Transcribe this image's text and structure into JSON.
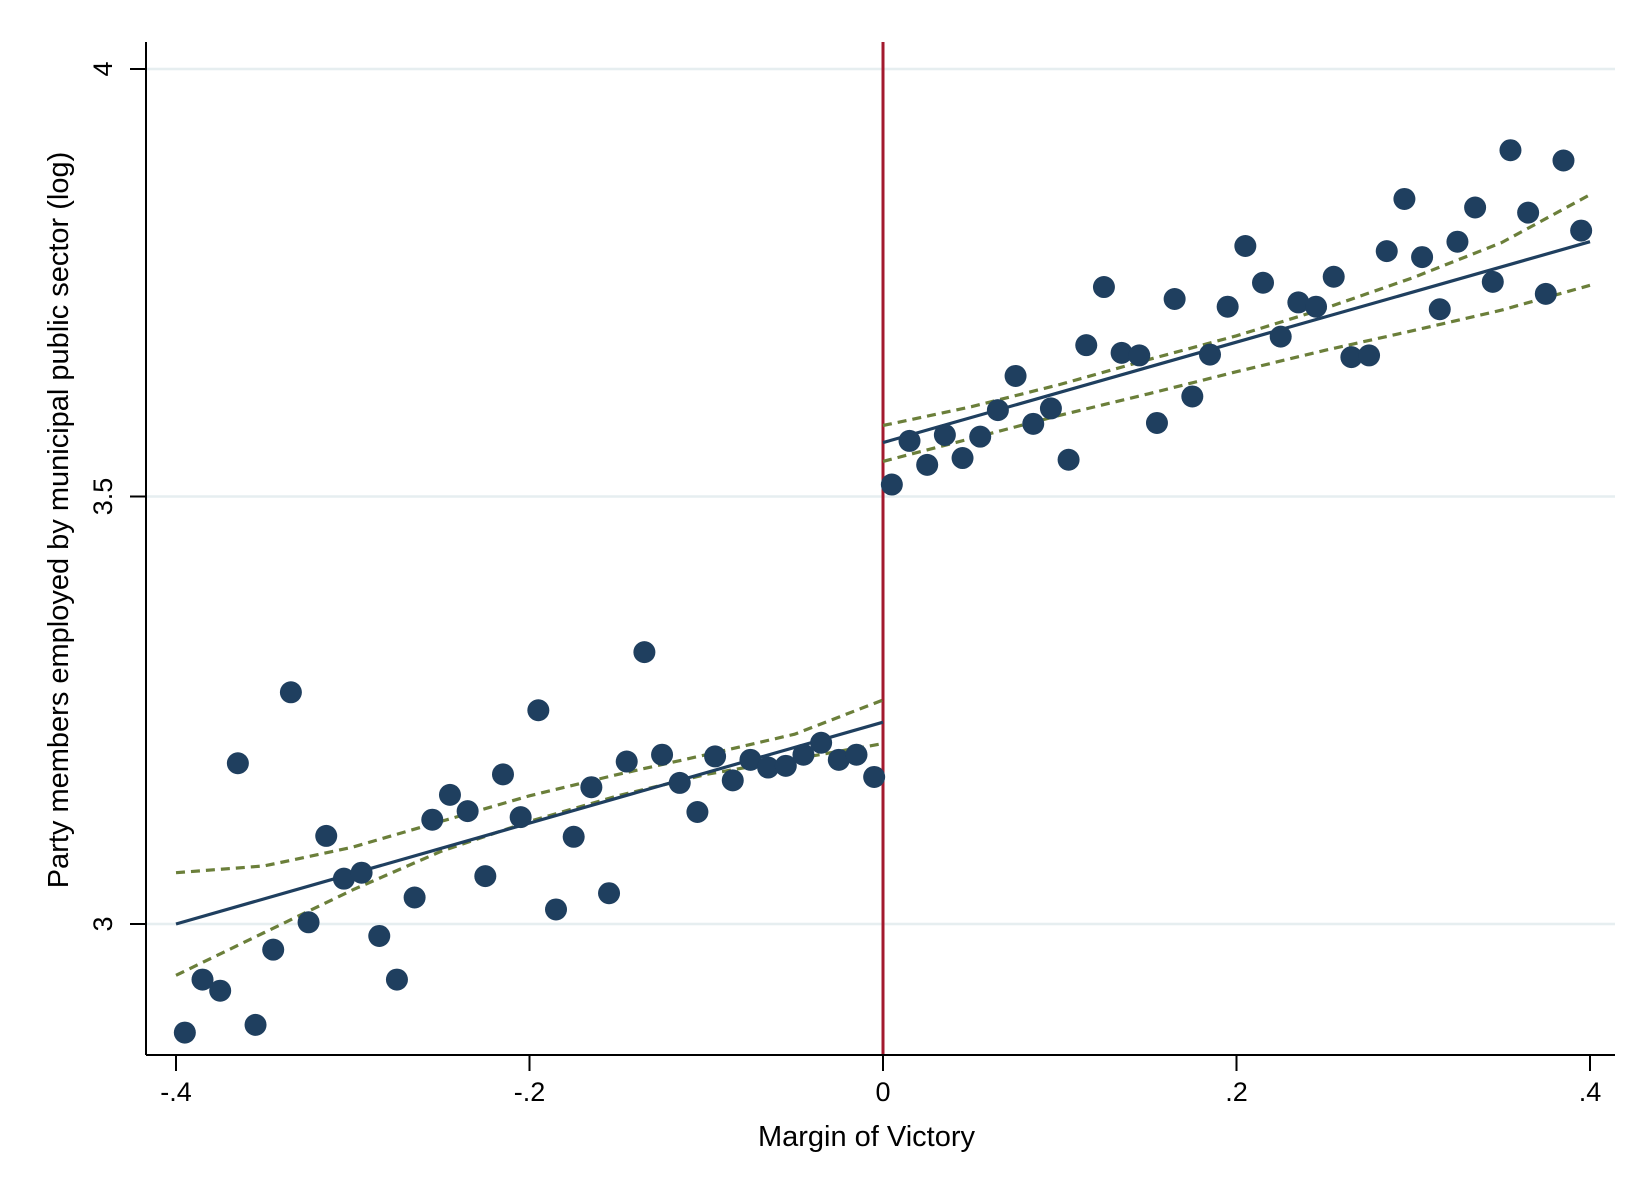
{
  "chart_data": {
    "type": "scatter",
    "title": "",
    "xlabel": "Margin of Victory",
    "ylabel": "Party members employed by municipal public sector (log)",
    "xlim": [
      -0.4,
      0.4
    ],
    "ylim": [
      2.84,
      4.03
    ],
    "x_ticks": [
      {
        "value": -0.4,
        "label": "-.4"
      },
      {
        "value": -0.2,
        "label": "-.2"
      },
      {
        "value": 0,
        "label": "0"
      },
      {
        "value": 0.2,
        "label": ".2"
      },
      {
        "value": 0.4,
        "label": ".4"
      }
    ],
    "y_ticks": [
      {
        "value": 3,
        "label": "3"
      },
      {
        "value": 3.5,
        "label": "3.5"
      },
      {
        "value": 4,
        "label": "4"
      }
    ],
    "grid": "horizontal",
    "cutoff": 0,
    "colors": {
      "points": "#1f3f5f",
      "fit": "#1f3f5f",
      "ci": "#6b7f3a",
      "cutoff": "#a3192e",
      "grid": "#e6eef0"
    },
    "series": [
      {
        "kind": "scatter",
        "x": [
          -0.395,
          -0.385,
          -0.375,
          -0.365,
          -0.355,
          -0.345,
          -0.335,
          -0.325,
          -0.315,
          -0.305,
          -0.295,
          -0.285,
          -0.275,
          -0.265,
          -0.255,
          -0.245,
          -0.235,
          -0.225,
          -0.215,
          -0.205,
          -0.195,
          -0.185,
          -0.175,
          -0.165,
          -0.155,
          -0.145,
          -0.135,
          -0.125,
          -0.115,
          -0.105,
          -0.095,
          -0.085,
          -0.075,
          -0.065,
          -0.055,
          -0.045,
          -0.035,
          -0.025,
          -0.015,
          -0.005,
          0.005,
          0.015,
          0.025,
          0.035,
          0.045,
          0.055,
          0.065,
          0.075,
          0.085,
          0.095,
          0.105,
          0.115,
          0.125,
          0.135,
          0.145,
          0.155,
          0.165,
          0.175,
          0.185,
          0.195,
          0.205,
          0.215,
          0.225,
          0.235,
          0.245,
          0.255,
          0.265,
          0.275,
          0.285,
          0.295,
          0.305,
          0.315,
          0.325,
          0.335,
          0.345,
          0.355,
          0.365,
          0.375,
          0.385,
          0.395
        ],
        "y": [
          2.873,
          2.935,
          2.922,
          3.188,
          2.882,
          2.97,
          3.271,
          3.002,
          3.103,
          3.053,
          3.06,
          2.986,
          2.935,
          3.031,
          3.122,
          3.151,
          3.132,
          3.056,
          3.175,
          3.125,
          3.25,
          3.017,
          3.102,
          3.16,
          3.036,
          3.19,
          3.318,
          3.198,
          3.165,
          3.131,
          3.196,
          3.168,
          3.192,
          3.183,
          3.185,
          3.198,
          3.212,
          3.192,
          3.198,
          3.172,
          3.514,
          3.565,
          3.537,
          3.572,
          3.545,
          3.57,
          3.601,
          3.641,
          3.585,
          3.603,
          3.543,
          3.677,
          3.745,
          3.668,
          3.665,
          3.586,
          3.731,
          3.617,
          3.666,
          3.722,
          3.793,
          3.75,
          3.687,
          3.727,
          3.722,
          3.757,
          3.663,
          3.665,
          3.787,
          3.848,
          3.78,
          3.719,
          3.798,
          3.838,
          3.751,
          3.905,
          3.832,
          3.737,
          3.893,
          3.811
        ]
      },
      {
        "kind": "fit-line",
        "segments": [
          {
            "x": [
              -0.4,
              0
            ],
            "y": [
              3.0,
              3.236
            ]
          },
          {
            "x": [
              0,
              0.4
            ],
            "y": [
              3.563,
              3.798
            ]
          }
        ]
      },
      {
        "kind": "ci-lower",
        "segments": [
          {
            "x": [
              -0.4,
              -0.35,
              -0.3,
              -0.25,
              -0.2,
              -0.15,
              -0.1,
              -0.05,
              0
            ],
            "y": [
              2.94,
              2.99,
              3.04,
              3.085,
              3.12,
              3.15,
              3.175,
              3.193,
              3.211
            ]
          },
          {
            "x": [
              0,
              0.05,
              0.1,
              0.15,
              0.2,
              0.25,
              0.3,
              0.35,
              0.4
            ],
            "y": [
              3.541,
              3.568,
              3.595,
              3.62,
              3.646,
              3.671,
              3.694,
              3.718,
              3.747
            ]
          }
        ]
      },
      {
        "kind": "ci-upper",
        "segments": [
          {
            "x": [
              -0.4,
              -0.35,
              -0.3,
              -0.25,
              -0.2,
              -0.15,
              -0.1,
              -0.05,
              0
            ],
            "y": [
              3.06,
              3.068,
              3.09,
              3.12,
              3.15,
              3.175,
              3.198,
              3.222,
              3.262
            ]
          },
          {
            "x": [
              0,
              0.05,
              0.1,
              0.15,
              0.2,
              0.25,
              0.3,
              0.35,
              0.4
            ],
            "y": [
              3.583,
              3.605,
              3.631,
              3.66,
              3.688,
              3.72,
              3.756,
              3.797,
              3.853
            ]
          }
        ]
      }
    ]
  }
}
